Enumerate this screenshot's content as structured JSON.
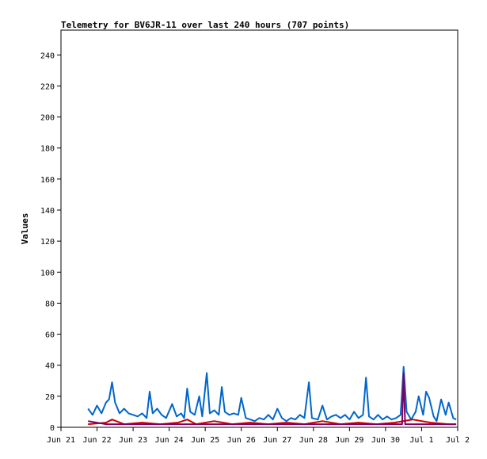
{
  "chart_data": {
    "type": "line",
    "title": "Telemetry for BV6JR-11 over last 240 hours (707 points)",
    "xlabel": "",
    "ylabel": "Values",
    "ylim": [
      0,
      256
    ],
    "yticks": [
      0,
      20,
      40,
      60,
      80,
      100,
      120,
      140,
      160,
      180,
      200,
      220,
      240
    ],
    "xlim": [
      "2024-06-21T00:00",
      "2024-07-02T00:00"
    ],
    "xticks": [
      {
        "label": "Jun 21",
        "x": "2024-06-21T00:00"
      },
      {
        "label": "Jun 22",
        "x": "2024-06-22T00:00"
      },
      {
        "label": "Jun 23",
        "x": "2024-06-23T00:00"
      },
      {
        "label": "Jun 24",
        "x": "2024-06-24T00:00"
      },
      {
        "label": "Jun 25",
        "x": "2024-06-25T00:00"
      },
      {
        "label": "Jun 26",
        "x": "2024-06-26T00:00"
      },
      {
        "label": "Jun 27",
        "x": "2024-06-27T00:00"
      },
      {
        "label": "Jun 28",
        "x": "2024-06-28T00:00"
      },
      {
        "label": "Jun 29",
        "x": "2024-06-29T00:00"
      },
      {
        "label": "Jun 30",
        "x": "2024-06-30T00:00"
      },
      {
        "label": "Jul 1",
        "x": "2024-07-01T00:00"
      },
      {
        "label": "Jul 2",
        "x": "2024-07-02T00:00"
      }
    ],
    "grid": false,
    "legend": "none",
    "series": [
      {
        "color": "#0066cc",
        "points": [
          [
            "2024-06-21T18:00",
            12
          ],
          [
            "2024-06-21T21:00",
            8
          ],
          [
            "2024-06-22T00:00",
            14
          ],
          [
            "2024-06-22T03:00",
            9
          ],
          [
            "2024-06-22T06:00",
            16
          ],
          [
            "2024-06-22T08:00",
            18
          ],
          [
            "2024-06-22T10:00",
            29
          ],
          [
            "2024-06-22T12:00",
            16
          ],
          [
            "2024-06-22T15:00",
            9
          ],
          [
            "2024-06-22T18:00",
            12
          ],
          [
            "2024-06-22T21:00",
            9
          ],
          [
            "2024-06-23T00:00",
            8
          ],
          [
            "2024-06-23T03:00",
            7
          ],
          [
            "2024-06-23T06:00",
            9
          ],
          [
            "2024-06-23T09:00",
            6
          ],
          [
            "2024-06-23T11:00",
            23
          ],
          [
            "2024-06-23T13:00",
            9
          ],
          [
            "2024-06-23T16:00",
            12
          ],
          [
            "2024-06-23T19:00",
            8
          ],
          [
            "2024-06-23T22:00",
            6
          ],
          [
            "2024-06-24T02:00",
            15
          ],
          [
            "2024-06-24T05:00",
            7
          ],
          [
            "2024-06-24T08:00",
            9
          ],
          [
            "2024-06-24T10:00",
            6
          ],
          [
            "2024-06-24T12:00",
            25
          ],
          [
            "2024-06-24T14:00",
            10
          ],
          [
            "2024-06-24T17:00",
            8
          ],
          [
            "2024-06-24T20:00",
            20
          ],
          [
            "2024-06-24T22:00",
            7
          ],
          [
            "2024-06-25T01:00",
            35
          ],
          [
            "2024-06-25T03:00",
            9
          ],
          [
            "2024-06-25T06:00",
            11
          ],
          [
            "2024-06-25T09:00",
            8
          ],
          [
            "2024-06-25T11:00",
            26
          ],
          [
            "2024-06-25T13:00",
            10
          ],
          [
            "2024-06-25T16:00",
            8
          ],
          [
            "2024-06-25T19:00",
            9
          ],
          [
            "2024-06-25T22:00",
            8
          ],
          [
            "2024-06-26T00:00",
            19
          ],
          [
            "2024-06-26T03:00",
            6
          ],
          [
            "2024-06-26T06:00",
            5
          ],
          [
            "2024-06-26T09:00",
            4
          ],
          [
            "2024-06-26T12:00",
            6
          ],
          [
            "2024-06-26T15:00",
            5
          ],
          [
            "2024-06-26T18:00",
            8
          ],
          [
            "2024-06-26T21:00",
            5
          ],
          [
            "2024-06-27T00:00",
            12
          ],
          [
            "2024-06-27T03:00",
            6
          ],
          [
            "2024-06-27T06:00",
            4
          ],
          [
            "2024-06-27T09:00",
            6
          ],
          [
            "2024-06-27T12:00",
            5
          ],
          [
            "2024-06-27T15:00",
            8
          ],
          [
            "2024-06-27T18:00",
            6
          ],
          [
            "2024-06-27T21:00",
            29
          ],
          [
            "2024-06-27T23:00",
            6
          ],
          [
            "2024-06-28T03:00",
            5
          ],
          [
            "2024-06-28T06:00",
            14
          ],
          [
            "2024-06-28T09:00",
            5
          ],
          [
            "2024-06-28T12:00",
            7
          ],
          [
            "2024-06-28T15:00",
            8
          ],
          [
            "2024-06-28T18:00",
            6
          ],
          [
            "2024-06-28T21:00",
            8
          ],
          [
            "2024-06-29T00:00",
            5
          ],
          [
            "2024-06-29T03:00",
            10
          ],
          [
            "2024-06-29T06:00",
            6
          ],
          [
            "2024-06-29T09:00",
            8
          ],
          [
            "2024-06-29T11:00",
            32
          ],
          [
            "2024-06-29T13:00",
            7
          ],
          [
            "2024-06-29T16:00",
            5
          ],
          [
            "2024-06-29T19:00",
            8
          ],
          [
            "2024-06-29T22:00",
            5
          ],
          [
            "2024-06-30T01:00",
            7
          ],
          [
            "2024-06-30T04:00",
            5
          ],
          [
            "2024-06-30T07:00",
            6
          ],
          [
            "2024-06-30T10:00",
            8
          ],
          [
            "2024-06-30T12:00",
            39
          ],
          [
            "2024-06-30T14:00",
            10
          ],
          [
            "2024-06-30T17:00",
            5
          ],
          [
            "2024-06-30T20:00",
            10
          ],
          [
            "2024-06-30T22:00",
            20
          ],
          [
            "2024-07-01T01:00",
            8
          ],
          [
            "2024-07-01T03:00",
            23
          ],
          [
            "2024-07-01T05:00",
            19
          ],
          [
            "2024-07-01T08:00",
            7
          ],
          [
            "2024-07-01T10:00",
            4
          ],
          [
            "2024-07-01T13:00",
            18
          ],
          [
            "2024-07-01T16:00",
            8
          ],
          [
            "2024-07-01T18:00",
            16
          ],
          [
            "2024-07-01T21:00",
            6
          ],
          [
            "2024-07-01T23:00",
            5
          ]
        ]
      },
      {
        "color": "#cc0000",
        "points": [
          [
            "2024-06-21T18:00",
            2
          ],
          [
            "2024-06-22T06:00",
            3
          ],
          [
            "2024-06-22T10:00",
            5
          ],
          [
            "2024-06-22T18:00",
            2
          ],
          [
            "2024-06-23T06:00",
            3
          ],
          [
            "2024-06-23T18:00",
            2
          ],
          [
            "2024-06-24T06:00",
            3
          ],
          [
            "2024-06-24T12:00",
            5
          ],
          [
            "2024-06-24T18:00",
            2
          ],
          [
            "2024-06-25T06:00",
            4
          ],
          [
            "2024-06-25T18:00",
            2
          ],
          [
            "2024-06-26T06:00",
            3
          ],
          [
            "2024-06-26T18:00",
            2
          ],
          [
            "2024-06-27T06:00",
            3
          ],
          [
            "2024-06-27T18:00",
            2
          ],
          [
            "2024-06-28T06:00",
            4
          ],
          [
            "2024-06-28T18:00",
            2
          ],
          [
            "2024-06-29T06:00",
            3
          ],
          [
            "2024-06-29T18:00",
            2
          ],
          [
            "2024-06-30T06:00",
            3
          ],
          [
            "2024-06-30T18:00",
            5
          ],
          [
            "2024-07-01T06:00",
            3
          ],
          [
            "2024-07-01T18:00",
            2
          ],
          [
            "2024-07-01T23:00",
            2
          ]
        ]
      },
      {
        "color": "#800060",
        "points": [
          [
            "2024-06-21T18:00",
            4
          ],
          [
            "2024-06-22T06:00",
            2
          ],
          [
            "2024-06-22T18:00",
            2
          ],
          [
            "2024-06-23T06:00",
            2
          ],
          [
            "2024-06-23T18:00",
            2
          ],
          [
            "2024-06-24T06:00",
            2
          ],
          [
            "2024-06-24T18:00",
            2
          ],
          [
            "2024-06-25T06:00",
            2
          ],
          [
            "2024-06-25T18:00",
            2
          ],
          [
            "2024-06-26T06:00",
            2
          ],
          [
            "2024-06-26T18:00",
            2
          ],
          [
            "2024-06-27T06:00",
            2
          ],
          [
            "2024-06-27T18:00",
            2
          ],
          [
            "2024-06-28T06:00",
            2
          ],
          [
            "2024-06-28T18:00",
            2
          ],
          [
            "2024-06-29T06:00",
            2
          ],
          [
            "2024-06-29T18:00",
            2
          ],
          [
            "2024-06-30T06:00",
            2
          ],
          [
            "2024-06-30T11:00",
            2
          ],
          [
            "2024-06-30T12:00",
            35
          ],
          [
            "2024-06-30T13:00",
            2
          ],
          [
            "2024-06-30T18:00",
            2
          ],
          [
            "2024-07-01T06:00",
            2
          ],
          [
            "2024-07-01T18:00",
            2
          ],
          [
            "2024-07-01T23:00",
            2
          ]
        ]
      }
    ]
  }
}
